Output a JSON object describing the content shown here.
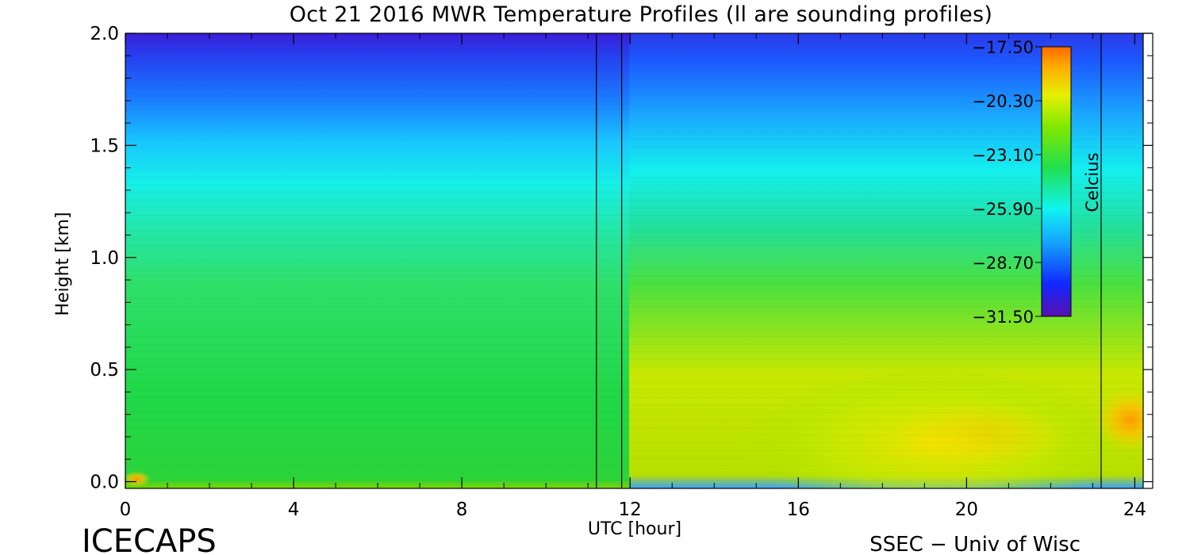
{
  "chart_data": {
    "type": "heatmap",
    "title": "Oct 21 2016 MWR Temperature Profiles (ll are sounding profiles)",
    "xlabel": "UTC [hour]",
    "ylabel": "Height [km]",
    "xlim": [
      0,
      24
    ],
    "ylim": [
      -0.03,
      2.0
    ],
    "x_ticks": [
      "0",
      "4",
      "8",
      "12",
      "16",
      "20",
      "24"
    ],
    "x_tick_values": [
      0,
      4,
      8,
      12,
      16,
      20,
      24
    ],
    "y_ticks": [
      "0.0",
      "0.5",
      "1.0",
      "1.5",
      "2.0"
    ],
    "y_tick_values": [
      0.0,
      0.5,
      1.0,
      1.5,
      2.0
    ],
    "sounding_profiles_utc": [
      11.2,
      11.8,
      23.2
    ],
    "colorbar": {
      "label": "Celcius",
      "min": -31.5,
      "max": -17.5,
      "tick_labels": [
        "−17.50",
        "−20.30",
        "−23.10",
        "−25.90",
        "−28.70",
        "−31.50"
      ],
      "tick_values": [
        -17.5,
        -20.3,
        -23.1,
        -25.9,
        -28.7,
        -31.5
      ]
    },
    "grid": false
  },
  "branding": {
    "left": "ICECAPS",
    "right": "SSEC − Univ of Wisc"
  }
}
